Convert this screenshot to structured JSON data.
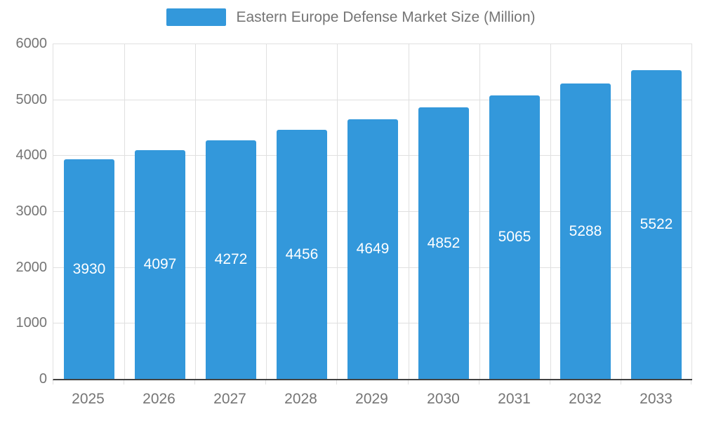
{
  "chart_data": {
    "type": "bar",
    "title": "Eastern Europe Defense Market Size (Million)",
    "categories": [
      "2025",
      "2026",
      "2027",
      "2028",
      "2029",
      "2030",
      "2031",
      "2032",
      "2033"
    ],
    "values": [
      3930,
      4097,
      4272,
      4456,
      4649,
      4852,
      5065,
      5288,
      5522
    ],
    "xlabel": "",
    "ylabel": "",
    "ylim": [
      0,
      6000
    ],
    "yticks": [
      0,
      1000,
      2000,
      3000,
      4000,
      5000,
      6000
    ],
    "grid": true,
    "legend_position": "top",
    "value_labels": "inside-center",
    "colors": {
      "bar": "#3398DB",
      "grid": "#E0E0E0",
      "axis_line": "#424242",
      "text": "#757575",
      "value_label": "#FFFFFF"
    }
  }
}
